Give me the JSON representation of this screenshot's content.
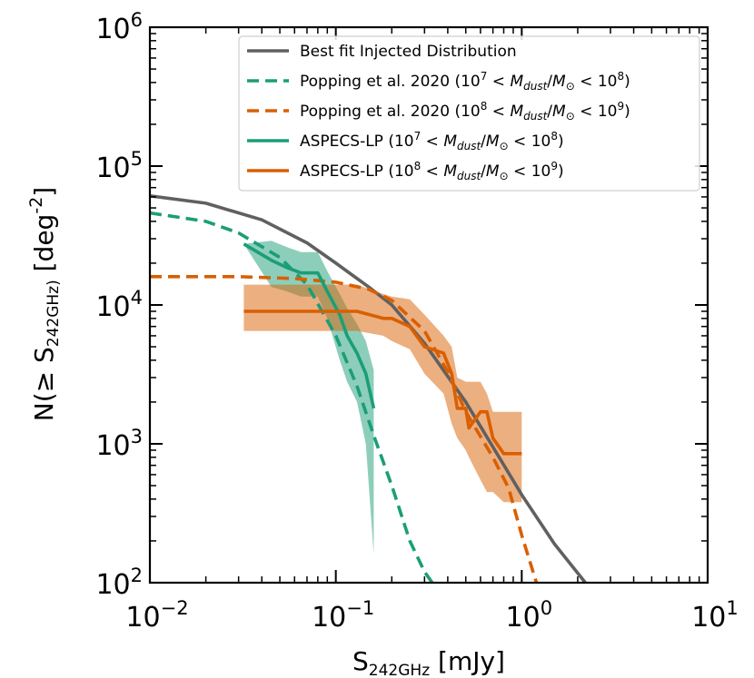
{
  "chart_data": {
    "type": "line",
    "xscale": "log",
    "yscale": "log",
    "xlim": [
      0.01,
      10
    ],
    "ylim": [
      100,
      1000000
    ],
    "xlabel": "S_242GHz [mJy]",
    "ylabel": "N(≥ S_242GHz) [deg^-2]",
    "x_ticks": [
      {
        "value": 0.01,
        "base": "10",
        "exp": "−2"
      },
      {
        "value": 0.1,
        "base": "10",
        "exp": "−1"
      },
      {
        "value": 1,
        "base": "10",
        "exp": "0"
      },
      {
        "value": 10,
        "base": "10",
        "exp": "1"
      }
    ],
    "y_ticks": [
      {
        "value": 100,
        "base": "10",
        "exp": "2"
      },
      {
        "value": 1000,
        "base": "10",
        "exp": "3"
      },
      {
        "value": 10000,
        "base": "10",
        "exp": "4"
      },
      {
        "value": 100000,
        "base": "10",
        "exp": "5"
      },
      {
        "value": 1000000,
        "base": "10",
        "exp": "6"
      }
    ],
    "legend_position": "top-right",
    "legend": [
      {
        "id": "best_fit",
        "style": "solid",
        "color": "#606060",
        "text": "Best fit Injected Distribution"
      },
      {
        "id": "popping_low",
        "style": "dashed",
        "color": "#1b9e77",
        "text": "Popping et al. 2020 (10^7 < M_dust/M_⊙ < 10^8)"
      },
      {
        "id": "popping_high",
        "style": "dashed",
        "color": "#d95f02",
        "text": "Popping et al. 2020 (10^8 < M_dust/M_⊙ < 10^9)"
      },
      {
        "id": "aspecs_low",
        "style": "solid",
        "color": "#1b9e77",
        "text": "ASPECS-LP (10^7 < M_dust/M_⊙ < 10^8)"
      },
      {
        "id": "aspecs_high",
        "style": "solid",
        "color": "#d95f02",
        "text": "ASPECS-LP (10^8 < M_dust/M_⊙ < 10^9)"
      }
    ],
    "series": [
      {
        "id": "best_fit",
        "name": "Best fit Injected Distribution",
        "style": "solid",
        "color": "#606060",
        "x": [
          0.01,
          0.02,
          0.04,
          0.07,
          0.1,
          0.15,
          0.2,
          0.3,
          0.5,
          0.7,
          1.0,
          1.5,
          2.2
        ],
        "y": [
          61000,
          54000,
          41000,
          28000,
          20000,
          13500,
          10000,
          5300,
          2000,
          950,
          430,
          190,
          100
        ]
      },
      {
        "id": "popping_low",
        "name": "Popping et al. 2020 (low)",
        "style": "dashed",
        "color": "#1b9e77",
        "x": [
          0.01,
          0.02,
          0.03,
          0.05,
          0.07,
          0.1,
          0.13,
          0.16,
          0.2,
          0.25,
          0.3,
          0.33
        ],
        "y": [
          46000,
          40000,
          33000,
          22000,
          14000,
          6000,
          2600,
          1150,
          500,
          200,
          120,
          100
        ]
      },
      {
        "id": "popping_high",
        "name": "Popping et al. 2020 (high)",
        "style": "dashed",
        "color": "#d95f02",
        "x": [
          0.01,
          0.03,
          0.06,
          0.1,
          0.15,
          0.2,
          0.3,
          0.4,
          0.5,
          0.7,
          0.85,
          1.0,
          1.2
        ],
        "y": [
          16000,
          16000,
          15500,
          14600,
          13000,
          10800,
          6500,
          3300,
          1700,
          800,
          480,
          220,
          100
        ]
      },
      {
        "id": "aspecs_low",
        "name": "ASPECS-LP (low)",
        "style": "solid",
        "color": "#1b9e77",
        "x": [
          0.032,
          0.045,
          0.055,
          0.065,
          0.08,
          0.09,
          0.105,
          0.115,
          0.13,
          0.145,
          0.16
        ],
        "y": [
          27500,
          21000,
          18500,
          17000,
          17000,
          12500,
          8500,
          6000,
          4500,
          3200,
          1800
        ],
        "band_low": [
          27500,
          13500,
          12500,
          11500,
          11500,
          8000,
          4000,
          2800,
          2000,
          1000,
          160
        ],
        "band_high": [
          27500,
          29000,
          26000,
          24000,
          24000,
          17500,
          12000,
          9500,
          7300,
          5500,
          3400
        ]
      },
      {
        "id": "aspecs_high",
        "name": "ASPECS-LP (high)",
        "style": "solid",
        "color": "#d95f02",
        "x": [
          0.032,
          0.1,
          0.13,
          0.18,
          0.2,
          0.25,
          0.3,
          0.38,
          0.42,
          0.45,
          0.5,
          0.52,
          0.6,
          0.65,
          0.7,
          0.8,
          0.85,
          1.0
        ],
        "y": [
          9000,
          9000,
          9000,
          8000,
          8000,
          7000,
          5000,
          4500,
          3200,
          1800,
          1800,
          1300,
          1700,
          1700,
          1100,
          850,
          850,
          850
        ],
        "band_low": [
          6500,
          6500,
          6500,
          6000,
          5500,
          4800,
          3200,
          2300,
          1400,
          1100,
          900,
          800,
          550,
          450,
          450,
          380,
          380,
          380
        ],
        "band_high": [
          14000,
          14000,
          14000,
          12000,
          11500,
          11000,
          8500,
          6000,
          5000,
          3000,
          2800,
          2800,
          2800,
          2300,
          1700,
          1700,
          1700,
          1700
        ]
      }
    ]
  }
}
